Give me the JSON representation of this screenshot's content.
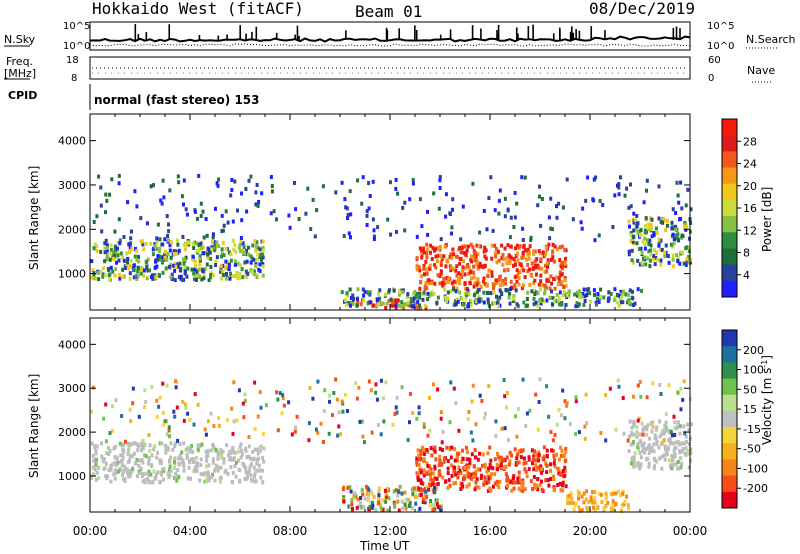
{
  "header": {
    "station": "Hokkaido West (fitACF)",
    "beam": "Beam 01",
    "date": "08/Dec/2019"
  },
  "top_panels": {
    "nsky_label": "N.Sky",
    "nsearch_label": "N.Search",
    "noise_ticks": [
      "10^5",
      "10^0"
    ],
    "freq_label": "Freq.",
    "freq_unit": "[MHz]",
    "freq_ticks": [
      "18",
      "8"
    ],
    "nave_label": "Nave",
    "nave_ticks": [
      "60",
      "0"
    ],
    "cpid_label": "CPID",
    "cpid_text": "normal (fast stereo) 153"
  },
  "colors": {
    "power": [
      "#1f1fff",
      "#2a3fa0",
      "#1f6d3a",
      "#2f8d3f",
      "#86c043",
      "#c9de3a",
      "#f2c71b",
      "#f79718",
      "#f2571c",
      "#e01a1a",
      "#f51a0a"
    ],
    "velocity": [
      "#e6001a",
      "#f84d1a",
      "#f7861a",
      "#f5b21c",
      "#f5d33a",
      "#c0c0c0",
      "#b8e08c",
      "#6fc34b",
      "#2e8f4f",
      "#1f6f9f",
      "#1f3ab0"
    ],
    "ground": "#bdbdbd"
  },
  "chart_data": [
    {
      "type": "heatmap",
      "title": "Power",
      "xlabel": "Time UT",
      "ylabel": "Slant Range [km]",
      "x_ticks": [
        "00:00",
        "04:00",
        "08:00",
        "12:00",
        "16:00",
        "20:00",
        "00:00"
      ],
      "y_ticks": [
        "1000",
        "2000",
        "3000",
        "4000"
      ],
      "ylim": [
        180,
        4600
      ],
      "colorbar_label": "Power [dB]",
      "colorbar_ticks": [
        "4",
        "8",
        "12",
        "16",
        "20",
        "24",
        "28"
      ],
      "colorbar_range": [
        0,
        30
      ],
      "echo_regions": [
        {
          "t": [
            0.0,
            6.9
          ],
          "r": [
            900,
            1800
          ],
          "level": "medium"
        },
        {
          "t": [
            13.0,
            19.0
          ],
          "r": [
            700,
            1700
          ],
          "level": "high"
        },
        {
          "t": [
            10.5,
            13.5
          ],
          "r": [
            250,
            450
          ],
          "level": "high"
        },
        {
          "t": [
            21.5,
            24.0
          ],
          "r": [
            1200,
            2300
          ],
          "level": "medium"
        },
        {
          "t": [
            10.0,
            22.0
          ],
          "r": [
            300,
            700
          ],
          "level": "low"
        }
      ]
    },
    {
      "type": "heatmap",
      "title": "Velocity",
      "xlabel": "Time UT",
      "ylabel": "Slant Range [km]",
      "x_ticks": [
        "00:00",
        "04:00",
        "08:00",
        "12:00",
        "16:00",
        "20:00",
        "00:00"
      ],
      "y_ticks": [
        "1000",
        "2000",
        "3000",
        "4000"
      ],
      "ylim": [
        180,
        4600
      ],
      "colorbar_label": "Velocity [m s^-1]",
      "colorbar_ticks": [
        "200",
        "100",
        "50",
        "15",
        "-15",
        "-50",
        "-100",
        "-200"
      ],
      "colorbar_range": [
        -250,
        250
      ],
      "echo_regions": [
        {
          "t": [
            0.0,
            6.9
          ],
          "r": [
            900,
            1800
          ],
          "level": "ground"
        },
        {
          "t": [
            13.0,
            19.0
          ],
          "r": [
            700,
            1700
          ],
          "level": "negative"
        },
        {
          "t": [
            10.0,
            14.0
          ],
          "r": [
            250,
            800
          ],
          "level": "mixed"
        },
        {
          "t": [
            19.0,
            21.5
          ],
          "r": [
            250,
            700
          ],
          "level": "slight-negative"
        },
        {
          "t": [
            21.5,
            24.0
          ],
          "r": [
            1200,
            2300
          ],
          "level": "ground"
        }
      ]
    }
  ]
}
